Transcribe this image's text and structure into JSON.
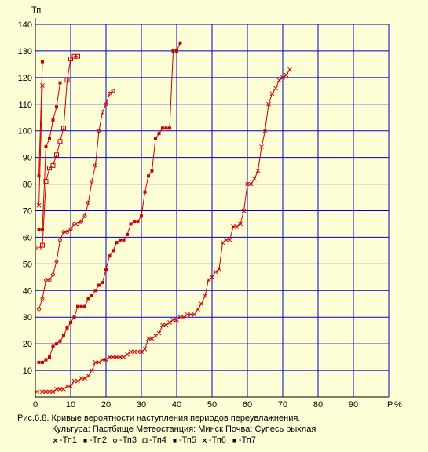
{
  "chart_data": {
    "type": "line",
    "ylabel": "Тп",
    "xlabel": "P,%",
    "xlim": [
      0,
      100
    ],
    "ylim": [
      0,
      140
    ],
    "x_ticks": [
      "0",
      "10",
      "20",
      "30",
      "40",
      "50",
      "60",
      "70",
      "80",
      "90"
    ],
    "y_ticks": [
      "10",
      "20",
      "30",
      "40",
      "50",
      "60",
      "70",
      "80",
      "90",
      "100",
      "110",
      "120",
      "130",
      "140"
    ],
    "grid": true,
    "line_color": "#cc0000",
    "grid_color": "#0000cc",
    "series": [
      {
        "name": "Тп1",
        "marker": "x",
        "points": [
          [
            0.5,
            2
          ],
          [
            2,
            2
          ],
          [
            3,
            2
          ],
          [
            4,
            2
          ],
          [
            5,
            2
          ],
          [
            6,
            3
          ],
          [
            7,
            3
          ],
          [
            8,
            3
          ],
          [
            9,
            4
          ],
          [
            10,
            4
          ],
          [
            11,
            6
          ],
          [
            12,
            6
          ],
          [
            13,
            7
          ],
          [
            14,
            7
          ],
          [
            15,
            8
          ],
          [
            16,
            10
          ],
          [
            17,
            13
          ],
          [
            18,
            13
          ],
          [
            19,
            14
          ],
          [
            20,
            14
          ],
          [
            21,
            15
          ],
          [
            22,
            15
          ],
          [
            23,
            15
          ],
          [
            24,
            15
          ],
          [
            25,
            15
          ],
          [
            26,
            16
          ],
          [
            27,
            17
          ],
          [
            28,
            17
          ],
          [
            29,
            17
          ],
          [
            30,
            17
          ],
          [
            31,
            18
          ],
          [
            32,
            22
          ],
          [
            33,
            22
          ],
          [
            34,
            23
          ],
          [
            35,
            24
          ],
          [
            36,
            27
          ],
          [
            37,
            27
          ],
          [
            38,
            28
          ],
          [
            39,
            29
          ],
          [
            40,
            29
          ],
          [
            41,
            30
          ],
          [
            42,
            30
          ],
          [
            43,
            31
          ],
          [
            44,
            31
          ],
          [
            45,
            31
          ],
          [
            46,
            33
          ],
          [
            47,
            35
          ],
          [
            48,
            38
          ],
          [
            49,
            44
          ],
          [
            50,
            45
          ],
          [
            51,
            47
          ],
          [
            52,
            48
          ],
          [
            53,
            58
          ],
          [
            54,
            59
          ],
          [
            55,
            59
          ],
          [
            56,
            64
          ],
          [
            57,
            64
          ],
          [
            58,
            65
          ],
          [
            59,
            70
          ],
          [
            60,
            80
          ],
          [
            61,
            80
          ],
          [
            62,
            82
          ],
          [
            63,
            85
          ],
          [
            64,
            94
          ],
          [
            65,
            100
          ],
          [
            66,
            110
          ],
          [
            67,
            114
          ],
          [
            68,
            116
          ],
          [
            69,
            119
          ],
          [
            70,
            120
          ],
          [
            71,
            121
          ],
          [
            72,
            123
          ]
        ]
      },
      {
        "name": "Тп2",
        "marker": "filled-square",
        "points": [
          [
            1,
            13
          ],
          [
            2,
            13
          ],
          [
            3,
            14
          ],
          [
            4,
            15
          ],
          [
            5,
            19
          ],
          [
            6,
            20
          ],
          [
            7,
            21
          ],
          [
            8,
            23
          ],
          [
            9,
            26
          ],
          [
            10,
            28
          ],
          [
            11,
            30
          ],
          [
            12,
            34
          ],
          [
            13,
            34
          ],
          [
            14,
            34
          ],
          [
            15,
            37
          ],
          [
            16,
            38
          ],
          [
            17,
            40
          ],
          [
            18,
            42
          ],
          [
            19,
            43
          ],
          [
            20,
            48
          ],
          [
            21,
            53
          ],
          [
            22,
            55
          ],
          [
            23,
            58
          ],
          [
            24,
            59
          ],
          [
            25,
            59
          ],
          [
            26,
            61
          ],
          [
            27,
            65
          ],
          [
            28,
            66
          ],
          [
            29,
            66
          ],
          [
            30,
            68
          ],
          [
            31,
            77
          ],
          [
            32,
            83
          ],
          [
            33,
            85
          ],
          [
            34,
            97
          ],
          [
            35,
            99
          ],
          [
            36,
            101
          ],
          [
            37,
            101
          ],
          [
            38,
            101
          ],
          [
            39,
            130
          ],
          [
            40,
            130
          ],
          [
            41,
            133
          ]
        ]
      },
      {
        "name": "Тп3",
        "marker": "circle",
        "points": [
          [
            1,
            33
          ],
          [
            2,
            37
          ],
          [
            3,
            44
          ],
          [
            4,
            44
          ],
          [
            5,
            46
          ],
          [
            6,
            51
          ],
          [
            7,
            59
          ],
          [
            8,
            62
          ],
          [
            9,
            62
          ],
          [
            10,
            63
          ],
          [
            11,
            65
          ],
          [
            12,
            65
          ],
          [
            13,
            66
          ],
          [
            14,
            68
          ],
          [
            15,
            73
          ],
          [
            16,
            81
          ],
          [
            17,
            87
          ],
          [
            18,
            100
          ],
          [
            19,
            107
          ],
          [
            20,
            110
          ],
          [
            21,
            114
          ],
          [
            22,
            115
          ]
        ]
      },
      {
        "name": "Тп4",
        "marker": "open-square",
        "points": [
          [
            1,
            56
          ],
          [
            2,
            57
          ],
          [
            3,
            81
          ],
          [
            4,
            86
          ],
          [
            5,
            87
          ],
          [
            6,
            91
          ],
          [
            7,
            96
          ],
          [
            8,
            101
          ],
          [
            9,
            119
          ],
          [
            10,
            127
          ],
          [
            11,
            128
          ],
          [
            12,
            128
          ]
        ]
      },
      {
        "name": "Тп5",
        "marker": "filled-square",
        "points": [
          [
            1,
            63
          ],
          [
            2,
            63
          ],
          [
            3,
            94
          ],
          [
            4,
            97
          ],
          [
            5,
            104
          ],
          [
            6,
            109
          ],
          [
            7,
            118
          ]
        ]
      },
      {
        "name": "Тп6",
        "marker": "x",
        "points": [
          [
            1,
            72
          ],
          [
            2,
            117
          ]
        ]
      },
      {
        "name": "Тп7",
        "marker": "filled-square",
        "points": [
          [
            1,
            83
          ],
          [
            2,
            126
          ]
        ]
      }
    ],
    "caption": {
      "line1": "Рис.6.8. Кривые вероятности наступления периодов переувлажнения.",
      "line2": "Культура: Пастбище   Метеостанция: Минск   Почва: Супесь рыхлая"
    }
  }
}
